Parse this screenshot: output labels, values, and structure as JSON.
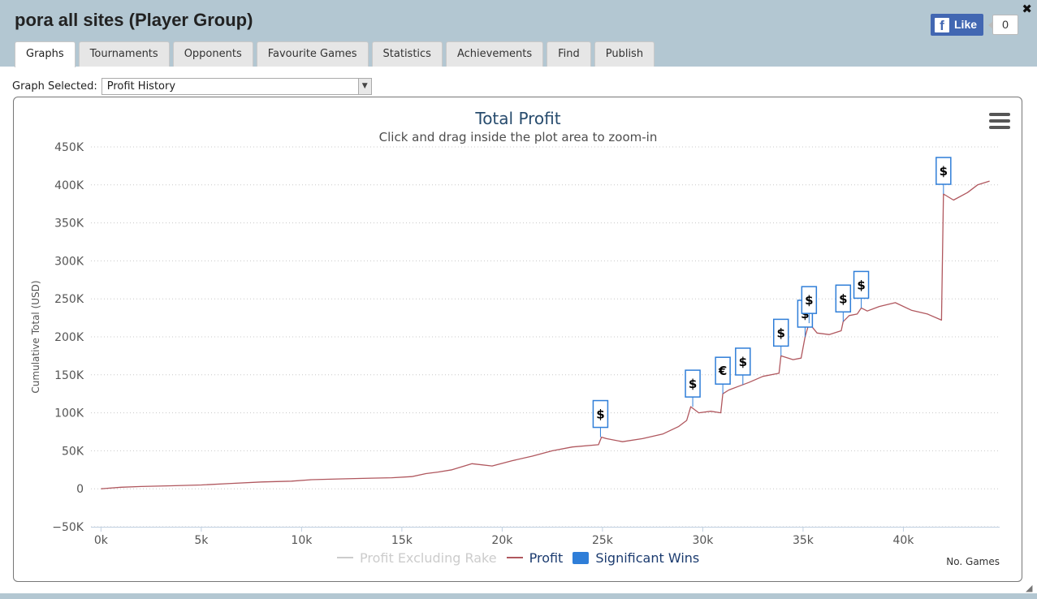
{
  "window": {
    "title": "pora all sites (Player Group)",
    "close_glyph": "✖",
    "close_icon": "close-icon"
  },
  "facebook": {
    "icon": "facebook-icon",
    "f_glyph": "f",
    "like_label": "Like",
    "count": "0"
  },
  "tabs": [
    {
      "label": "Graphs",
      "active": true
    },
    {
      "label": "Tournaments",
      "active": false
    },
    {
      "label": "Opponents",
      "active": false
    },
    {
      "label": "Favourite Games",
      "active": false
    },
    {
      "label": "Statistics",
      "active": false
    },
    {
      "label": "Achievements",
      "active": false
    },
    {
      "label": "Find",
      "active": false
    },
    {
      "label": "Publish",
      "active": false
    }
  ],
  "graph_select": {
    "label": "Graph Selected:",
    "value": "Profit History",
    "arrow_glyph": "▼"
  },
  "chart_menu": {
    "icon": "hamburger-menu-icon"
  },
  "legend": {
    "items": [
      {
        "label": "Profit Excluding Rake",
        "color": "#cccccc",
        "kind": "line"
      },
      {
        "label": "Profit",
        "color": "#b0575e",
        "kind": "line"
      },
      {
        "label": "Significant Wins",
        "color": "#2f7ed8",
        "kind": "box"
      }
    ]
  },
  "chart_data": {
    "type": "line",
    "title": "Total Profit",
    "subtitle": "Click and drag inside the plot area to zoom-in",
    "xlabel": "No. Games",
    "ylabel": "Cumulative Total (USD)",
    "xlim": [
      -500,
      44800
    ],
    "ylim": [
      -50000,
      450000
    ],
    "x_ticks": [
      0,
      5000,
      10000,
      15000,
      20000,
      25000,
      30000,
      35000,
      40000
    ],
    "x_tick_labels": [
      "0k",
      "5k",
      "10k",
      "15k",
      "20k",
      "25k",
      "30k",
      "35k",
      "40k"
    ],
    "y_ticks": [
      -50000,
      0,
      50000,
      100000,
      150000,
      200000,
      250000,
      300000,
      350000,
      400000,
      450000
    ],
    "y_tick_labels": [
      "−50K",
      "0",
      "50K",
      "100K",
      "150K",
      "200K",
      "250K",
      "300K",
      "350K",
      "400K",
      "450K"
    ],
    "grid": "horizontal dotted",
    "legend_position": "bottom-center",
    "series": [
      {
        "name": "Profit",
        "color": "#b0575e",
        "x": [
          0,
          1000,
          2000,
          3500,
          5000,
          6500,
          8000,
          9500,
          10500,
          12000,
          13500,
          14500,
          15500,
          16200,
          16800,
          17500,
          18500,
          19500,
          20500,
          21500,
          22500,
          23500,
          24800,
          24950,
          25200,
          26000,
          27000,
          28000,
          28800,
          29200,
          29400,
          29800,
          30400,
          30900,
          31000,
          31300,
          31800,
          32300,
          33000,
          33800,
          33900,
          34500,
          34900,
          35100,
          35300,
          35700,
          36300,
          36900,
          37000,
          37300,
          37700,
          37900,
          38200,
          38800,
          39600,
          40400,
          41200,
          41900,
          42000,
          42500,
          43200,
          43700,
          44300
        ],
        "y": [
          0,
          2000,
          3000,
          4000,
          5000,
          7000,
          9000,
          10000,
          12000,
          13000,
          14000,
          14500,
          16000,
          20000,
          22000,
          25000,
          33000,
          30000,
          37000,
          43000,
          50000,
          55000,
          58000,
          68000,
          66000,
          62000,
          66000,
          72000,
          82000,
          90000,
          108000,
          100000,
          102000,
          100000,
          125000,
          130000,
          135000,
          140000,
          148000,
          152000,
          175000,
          170000,
          172000,
          200000,
          218000,
          205000,
          203000,
          208000,
          220000,
          228000,
          230000,
          238000,
          234000,
          240000,
          245000,
          235000,
          230000,
          222000,
          388000,
          380000,
          390000,
          400000,
          405000
        ]
      },
      {
        "name": "Significant Wins",
        "color": "#2f7ed8",
        "kind": "flags",
        "points": [
          {
            "x": 24900,
            "y": 68000,
            "label": "$"
          },
          {
            "x": 29500,
            "y": 108000,
            "label": "$"
          },
          {
            "x": 31000,
            "y": 125000,
            "label": "€"
          },
          {
            "x": 32000,
            "y": 137000,
            "label": "$"
          },
          {
            "x": 33900,
            "y": 175000,
            "label": "$"
          },
          {
            "x": 35100,
            "y": 200000,
            "label": "$"
          },
          {
            "x": 35300,
            "y": 218000,
            "label": "$"
          },
          {
            "x": 37000,
            "y": 220000,
            "label": "$"
          },
          {
            "x": 37900,
            "y": 238000,
            "label": "$"
          },
          {
            "x": 42000,
            "y": 388000,
            "label": "$"
          }
        ]
      }
    ]
  }
}
